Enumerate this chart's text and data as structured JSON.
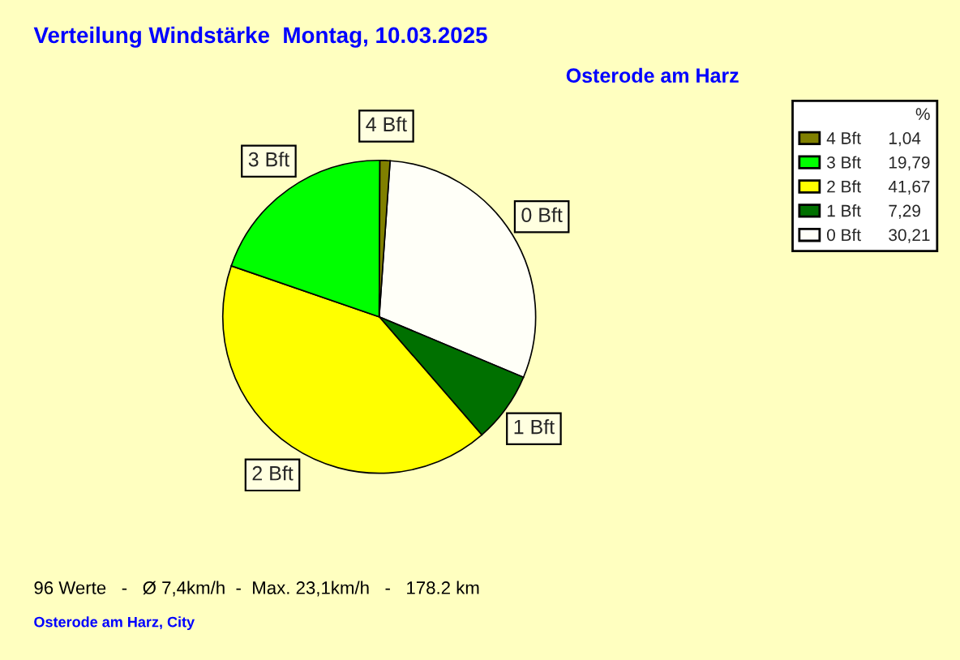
{
  "chart_data": {
    "type": "pie",
    "title": "Verteilung Windstärke  Montag, 10.03.2025",
    "subtitle": "Osterode am Harz",
    "categories": [
      "0 Bft",
      "1 Bft",
      "2 Bft",
      "3 Bft",
      "4 Bft"
    ],
    "values": [
      30.21,
      7.29,
      41.67,
      19.79,
      1.04
    ],
    "value_labels": [
      "30,21",
      "7,29",
      "41,67",
      "19,79",
      "1,04"
    ],
    "colors": [
      "#fffff8",
      "#007000",
      "#ffff00",
      "#00ff00",
      "#808000"
    ],
    "legend": "right",
    "legend_title": "%",
    "annotations": [
      "96 Werte   -   Ø 7,4km/h  -  Max. 23,1km/h   -   178.2 km",
      "Osterode am Harz, City"
    ]
  }
}
